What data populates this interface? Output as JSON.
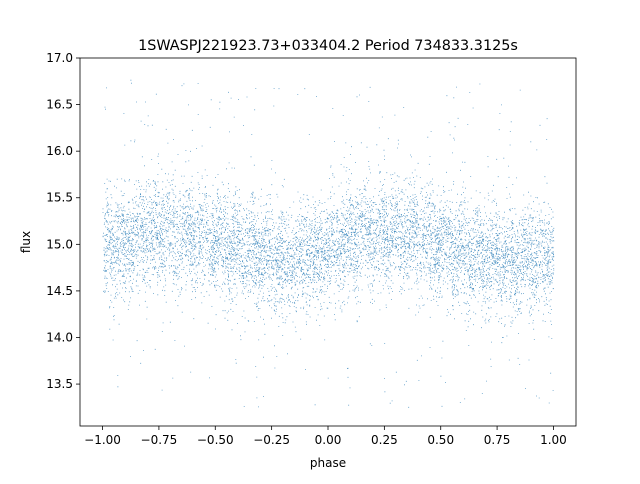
{
  "chart_data": {
    "type": "scatter",
    "title": "1SWASPJ221923.73+033404.2 Period 734833.3125s",
    "xlabel": "phase",
    "ylabel": "flux",
    "xlim": [
      -1.1,
      1.1
    ],
    "ylim": [
      13.05,
      17.0
    ],
    "x_ticks": [
      -1.0,
      -0.75,
      -0.5,
      -0.25,
      0.0,
      0.25,
      0.5,
      0.75,
      1.0
    ],
    "x_tick_labels": [
      "−1.00",
      "−0.75",
      "−0.50",
      "−0.25",
      "0.00",
      "0.25",
      "0.50",
      "0.75",
      "1.00"
    ],
    "y_ticks": [
      13.5,
      14.0,
      14.5,
      15.0,
      15.5,
      16.0,
      16.5,
      17.0
    ],
    "y_tick_labels": [
      "13.5",
      "14.0",
      "14.5",
      "15.0",
      "15.5",
      "16.0",
      "16.5",
      "17.0"
    ],
    "grid": false,
    "legend": "none",
    "point_color": "#1f77b4",
    "series": [
      {
        "x_range": [
          -1.0,
          1.0
        ],
        "flux_profile_x": [
          -1.0,
          -0.75,
          -0.6,
          -0.5,
          -0.4,
          -0.25,
          -0.15,
          0.0,
          0.1,
          0.25,
          0.4,
          0.5,
          0.6,
          0.75,
          0.85,
          1.0
        ],
        "flux_profile_y": [
          14.95,
          15.15,
          15.1,
          15.05,
          14.95,
          14.85,
          14.82,
          14.95,
          15.05,
          15.15,
          15.1,
          15.0,
          14.9,
          14.85,
          14.85,
          14.9
        ],
        "core_scatter": 0.28,
        "outlier_range": [
          13.25,
          16.8
        ],
        "approx_points": 30000
      }
    ]
  }
}
